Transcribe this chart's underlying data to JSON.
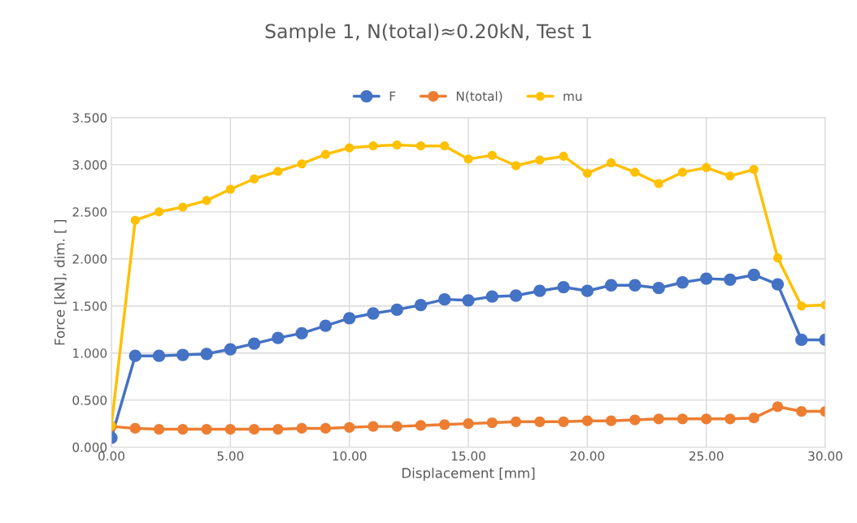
{
  "chart_data": {
    "type": "line",
    "title": "Sample 1, N(total)≈0.20kN, Test 1",
    "xlabel": "Displacement [mm]",
    "ylabel": "Force [kN], dim. [ ]",
    "x": [
      0,
      1,
      2,
      3,
      4,
      5,
      6,
      7,
      8,
      9,
      10,
      11,
      12,
      13,
      14,
      15,
      16,
      17,
      18,
      19,
      20,
      21,
      22,
      23,
      24,
      25,
      26,
      27,
      28,
      29,
      30
    ],
    "series": [
      {
        "name": "F",
        "color": "#4472c4",
        "values": [
          0.1,
          0.97,
          0.97,
          0.98,
          0.99,
          1.04,
          1.1,
          1.16,
          1.21,
          1.29,
          1.37,
          1.42,
          1.46,
          1.51,
          1.57,
          1.56,
          1.6,
          1.61,
          1.66,
          1.7,
          1.66,
          1.72,
          1.72,
          1.69,
          1.75,
          1.79,
          1.78,
          1.83,
          1.73,
          1.14,
          1.14
        ]
      },
      {
        "name": "N(total)",
        "color": "#ed7d31",
        "values": [
          0.22,
          0.2,
          0.19,
          0.19,
          0.19,
          0.19,
          0.19,
          0.19,
          0.2,
          0.2,
          0.21,
          0.22,
          0.22,
          0.23,
          0.24,
          0.25,
          0.26,
          0.27,
          0.27,
          0.27,
          0.28,
          0.28,
          0.29,
          0.3,
          0.3,
          0.3,
          0.3,
          0.31,
          0.43,
          0.38,
          0.38
        ]
      },
      {
        "name": "mu",
        "color": "#ffc000",
        "values": [
          0.23,
          2.41,
          2.5,
          2.55,
          2.62,
          2.74,
          2.85,
          2.93,
          3.01,
          3.11,
          3.18,
          3.2,
          3.21,
          3.2,
          3.2,
          3.06,
          3.1,
          2.99,
          3.05,
          3.09,
          2.91,
          3.02,
          2.92,
          2.8,
          2.92,
          2.97,
          2.88,
          2.95,
          2.01,
          1.5,
          1.51
        ]
      }
    ],
    "xlim": [
      0,
      30
    ],
    "ylim": [
      0,
      3.5
    ],
    "xticks": [
      {
        "value": 0,
        "label": "0.00"
      },
      {
        "value": 5,
        "label": "5.00"
      },
      {
        "value": 10,
        "label": "10.00"
      },
      {
        "value": 15,
        "label": "15.00"
      },
      {
        "value": 20,
        "label": "20.00"
      },
      {
        "value": 25,
        "label": "25.00"
      },
      {
        "value": 30,
        "label": "30.00"
      }
    ],
    "yticks": [
      {
        "value": 0,
        "label": "0.000"
      },
      {
        "value": 0.5,
        "label": "0.500"
      },
      {
        "value": 1,
        "label": "1.000"
      },
      {
        "value": 1.5,
        "label": "1.500"
      },
      {
        "value": 2,
        "label": "2.000"
      },
      {
        "value": 2.5,
        "label": "2.500"
      },
      {
        "value": 3,
        "label": "3.000"
      },
      {
        "value": 3.5,
        "label": "3.500"
      }
    ],
    "grid": true,
    "legend": "top",
    "marker": "circle",
    "line_style": "solid"
  }
}
